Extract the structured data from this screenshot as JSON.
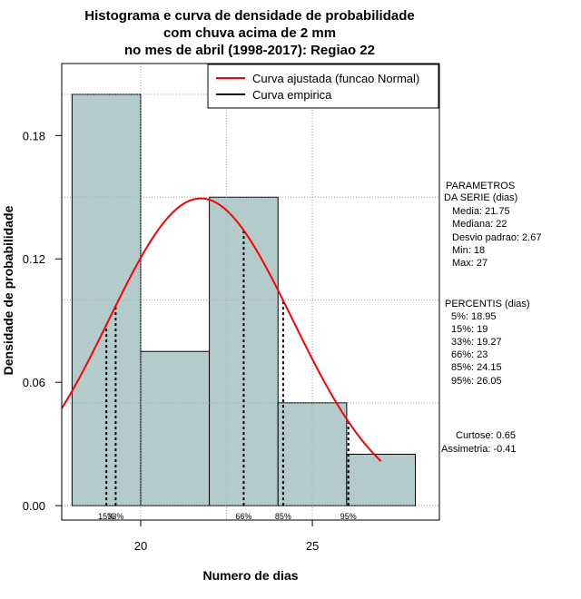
{
  "chart_data": {
    "type": "histogram",
    "title_lines": [
      "Histograma e curva de densidade de probabilidade",
      "com chuva acima de 2 mm",
      "no mes de abril (1998-2017): Regiao 22"
    ],
    "xlabel": "Numero de dias",
    "ylabel": "Densidade de probabilidade",
    "xlim": [
      17.7,
      28.7
    ],
    "ylim": [
      -0.007,
      0.215
    ],
    "x_ticks": [
      20,
      25
    ],
    "y_ticks": [
      0.0,
      0.06,
      0.12,
      0.18
    ],
    "y_tick_labels": [
      "0.00",
      "0.06",
      "0.12",
      "0.18"
    ],
    "x_grid": [
      20,
      22.5,
      25
    ],
    "y_grid": [
      0.0,
      0.05,
      0.1,
      0.15,
      0.2
    ],
    "bins": [
      {
        "x0": 18,
        "x1": 20,
        "density": 0.2
      },
      {
        "x0": 20,
        "x1": 22,
        "density": 0.075
      },
      {
        "x0": 22,
        "x1": 24,
        "density": 0.15
      },
      {
        "x0": 24,
        "x1": 26,
        "density": 0.05
      },
      {
        "x0": 26,
        "x1": 28,
        "density": 0.025
      }
    ],
    "bar_color": "#b4cbcb",
    "curve_color": "#ff0000",
    "normal_fit": {
      "mean": 21.75,
      "sd": 2.67,
      "x_from": 17.7,
      "x_to": 27.0
    },
    "percentile_lines": [
      {
        "label": "15%",
        "x": 19.0
      },
      {
        "label": "33%",
        "x": 19.27
      },
      {
        "label": "66%",
        "x": 23.0
      },
      {
        "label": "85%",
        "x": 24.15
      },
      {
        "label": "95%",
        "x": 26.05
      }
    ],
    "legend": [
      {
        "label": "Curva ajustada (funcao Normal)",
        "color": "#ff0000"
      },
      {
        "label": "Curva empirica",
        "color": "#000000"
      }
    ]
  },
  "side_panel": {
    "parametros": [
      "PARAMETROS",
      "DA SERIE (dias)",
      "Media: 21.75",
      "Mediana: 22",
      "Desvio padrao: 2.67",
      "Min: 18",
      "Max: 27"
    ],
    "percentis": [
      "PERCENTIS (dias)",
      "5%: 18.95",
      "15%: 19",
      "33%: 19.27",
      "66%: 23",
      "85%: 24.15",
      "95%: 26.05"
    ],
    "curtose": "Curtose: 0.65",
    "assimetria": "Assimetria: -0.41"
  }
}
